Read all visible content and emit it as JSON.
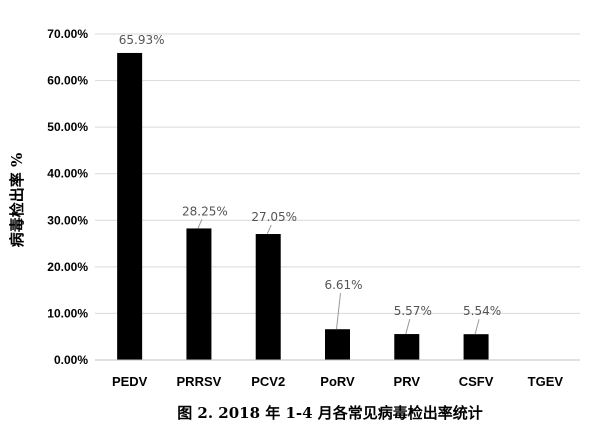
{
  "chart_data": {
    "type": "bar",
    "categories": [
      "PEDV",
      "PRRSV",
      "PCV2",
      "PoRV",
      "PRV",
      "CSFV",
      "TGEV"
    ],
    "values": [
      65.93,
      28.25,
      27.05,
      6.61,
      5.57,
      5.54,
      0
    ],
    "data_labels": [
      "65.93%",
      "28.25%",
      "27.05%",
      "6.61%",
      "5.57%",
      "5.54%",
      ""
    ],
    "yticks": [
      "0.00%",
      "10.00%",
      "20.00%",
      "30.00%",
      "40.00%",
      "50.00%",
      "60.00%",
      "70.00%"
    ],
    "ylim": [
      0,
      70
    ],
    "ylabel": "病毒检出率 %",
    "caption": "图 2. 2018 年 1-4 月各常见病毒检出率统计",
    "grid": true,
    "bar_color": "#000000",
    "grid_color": "#d9d9d9"
  }
}
